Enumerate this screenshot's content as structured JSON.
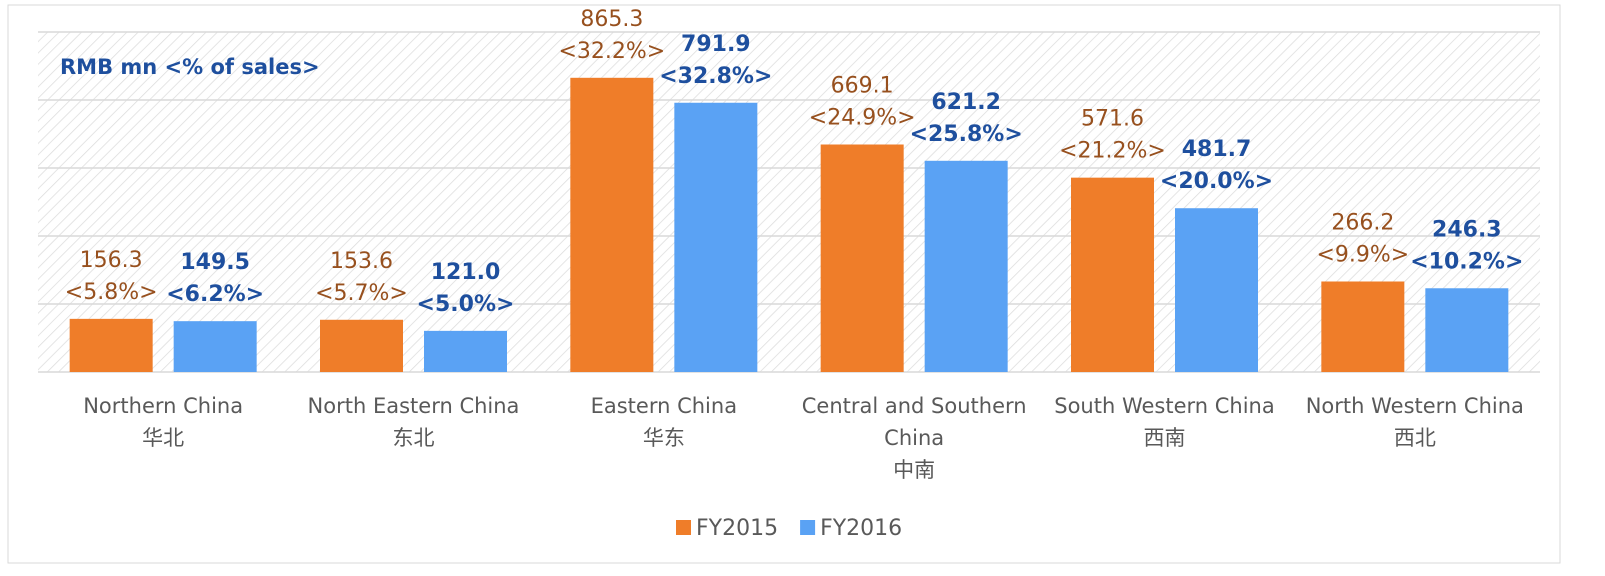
{
  "chart_data": {
    "type": "bar",
    "title": "RMB mn <% of sales>",
    "categories": [
      [
        "Northern China",
        "华北"
      ],
      [
        "North Eastern China",
        "东北"
      ],
      [
        "Eastern China",
        "华东"
      ],
      [
        "Central and Southern",
        "China",
        "中南"
      ],
      [
        "South Western China",
        "西南"
      ],
      [
        "North Western China",
        "西北"
      ]
    ],
    "series": [
      {
        "name": "FY2015",
        "color": "#ef7d29",
        "label_color": "#97501e",
        "values": [
          156.3,
          153.6,
          865.3,
          669.1,
          571.6,
          266.2
        ],
        "value_labels": [
          "156.3",
          "153.6",
          "865.3",
          "669.1",
          "571.6",
          "266.2"
        ],
        "share_labels": [
          "<5.8%>",
          "<5.7%>",
          "<32.2%>",
          "<24.9%>",
          "<21.2%>",
          "<9.9%>"
        ]
      },
      {
        "name": "FY2016",
        "color": "#5aa2f4",
        "label_color": "#1e4f9e",
        "values": [
          149.5,
          121.0,
          791.9,
          621.2,
          481.7,
          246.3
        ],
        "value_labels": [
          "149.5",
          "121.0",
          "791.9",
          "621.2",
          "481.7",
          "246.3"
        ],
        "share_labels": [
          "<6.2%>",
          "<5.0%>",
          "<32.8%>",
          "<25.8%>",
          "<20.0%>",
          "<10.2%>"
        ]
      }
    ],
    "ylim": [
      0,
      1000
    ],
    "yticks": [
      0,
      200,
      400,
      600,
      800,
      1000
    ],
    "grid": true
  }
}
